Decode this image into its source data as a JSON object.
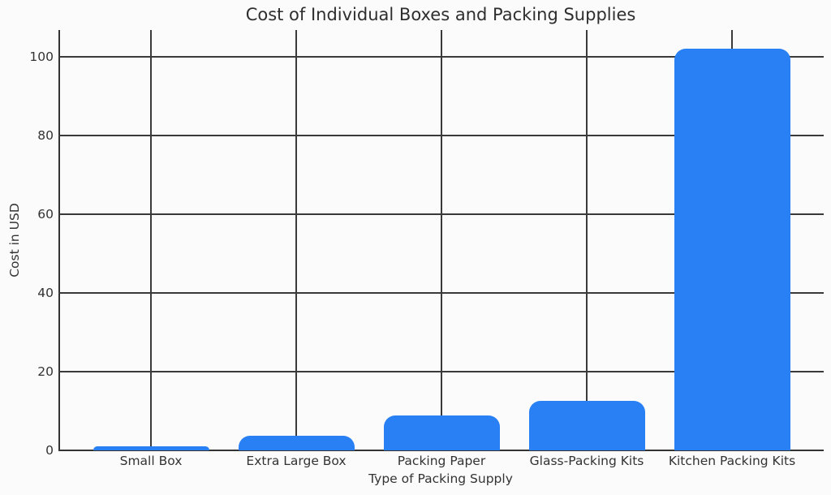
{
  "chart_data": {
    "type": "bar",
    "title": "Cost of Individual Boxes and Packing Supplies",
    "xlabel": "Type of Packing Supply",
    "ylabel": "Cost in USD",
    "categories": [
      "Small Box",
      "Extra Large Box",
      "Packing Paper",
      "Glass-Packing Kits",
      "Kitchen Packing Kits"
    ],
    "values": [
      1,
      3.7,
      8.9,
      12.6,
      102
    ],
    "ylim": [
      0,
      107
    ],
    "yticks": [
      0,
      20,
      40,
      60,
      80,
      100
    ],
    "grid": true,
    "legend": null,
    "bar_color": "#2980f5"
  }
}
